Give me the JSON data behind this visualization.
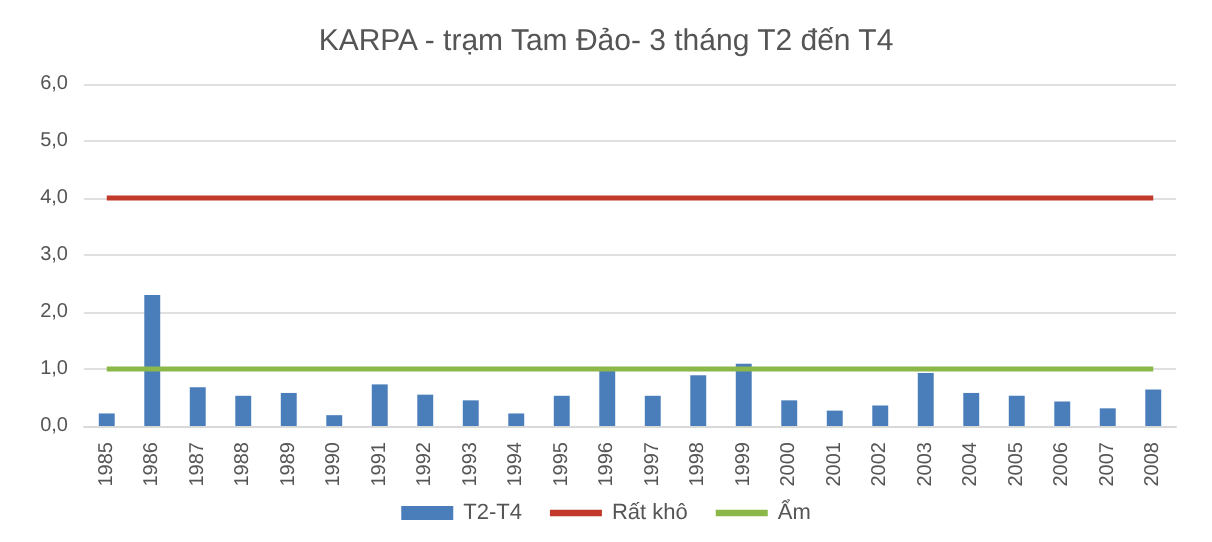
{
  "chart_data": {
    "type": "bar",
    "title": "KARPA - trạm Tam Đảo- 3 tháng T2 đến T4",
    "categories": [
      "1985",
      "1986",
      "1987",
      "1988",
      "1989",
      "1990",
      "1991",
      "1992",
      "1993",
      "1994",
      "1995",
      "1996",
      "1997",
      "1998",
      "1999",
      "2000",
      "2001",
      "2002",
      "2003",
      "2004",
      "2005",
      "2006",
      "2007",
      "2008"
    ],
    "series": [
      {
        "name": "T2-T4",
        "color": "#4a7ebb",
        "values": [
          0.22,
          2.3,
          0.68,
          0.53,
          0.58,
          0.19,
          0.73,
          0.55,
          0.45,
          0.22,
          0.53,
          0.97,
          0.53,
          0.89,
          1.09,
          0.45,
          0.27,
          0.36,
          0.93,
          0.58,
          0.53,
          0.43,
          0.31,
          0.64
        ]
      },
      {
        "name": "Rất khô",
        "type": "line",
        "color": "#c0392b",
        "values": [
          4,
          4,
          4,
          4,
          4,
          4,
          4,
          4,
          4,
          4,
          4,
          4,
          4,
          4,
          4,
          4,
          4,
          4,
          4,
          4,
          4,
          4,
          4,
          4
        ]
      },
      {
        "name": "Ẩm",
        "type": "line",
        "color": "#8cb84a",
        "values": [
          1,
          1,
          1,
          1,
          1,
          1,
          1,
          1,
          1,
          1,
          1,
          1,
          1,
          1,
          1,
          1,
          1,
          1,
          1,
          1,
          1,
          1,
          1,
          1
        ]
      }
    ],
    "ylim": [
      0,
      6
    ],
    "yticks": [
      {
        "value": 0,
        "label": "0,0"
      },
      {
        "value": 1,
        "label": "1,0"
      },
      {
        "value": 2,
        "label": "2,0"
      },
      {
        "value": 3,
        "label": "3,0"
      },
      {
        "value": 4,
        "label": "4,0"
      },
      {
        "value": 5,
        "label": "5,0"
      },
      {
        "value": 6,
        "label": "6,0"
      }
    ],
    "grid": "y",
    "legend": "bottom",
    "marker": "none"
  }
}
